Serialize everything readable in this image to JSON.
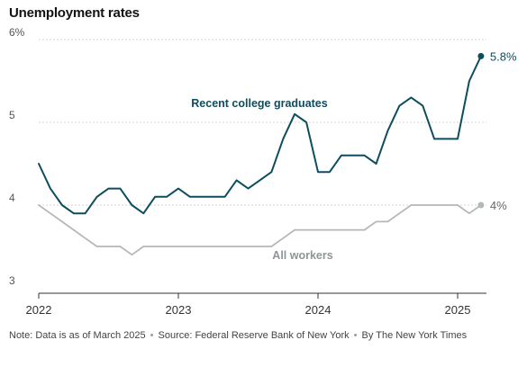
{
  "chart_data": {
    "type": "line",
    "title": "Unemployment rates",
    "xlabel": "",
    "ylabel": "",
    "ylim": [
      3,
      6
    ],
    "yticks": [
      {
        "value": 3,
        "label": "3"
      },
      {
        "value": 4,
        "label": "4"
      },
      {
        "value": 5,
        "label": "5"
      },
      {
        "value": 6,
        "label": "6%"
      }
    ],
    "xticks": [
      {
        "value": 2022.0,
        "label": "2022"
      },
      {
        "value": 2023.0,
        "label": "2023"
      },
      {
        "value": 2024.0,
        "label": "2024"
      },
      {
        "value": 2025.0,
        "label": "2025"
      }
    ],
    "xlim": [
      2022.0,
      2025.25
    ],
    "grid": true,
    "series": [
      {
        "name": "Recent college graduates",
        "color": "#0d4d5e",
        "end_label": "5.8%",
        "x": [
          2022.0,
          2022.083,
          2022.167,
          2022.25,
          2022.333,
          2022.417,
          2022.5,
          2022.583,
          2022.667,
          2022.75,
          2022.833,
          2022.917,
          2023.0,
          2023.083,
          2023.167,
          2023.25,
          2023.333,
          2023.417,
          2023.5,
          2023.583,
          2023.667,
          2023.75,
          2023.833,
          2023.917,
          2024.0,
          2024.083,
          2024.167,
          2024.25,
          2024.333,
          2024.417,
          2024.5,
          2024.583,
          2024.667,
          2024.75,
          2024.833,
          2024.917,
          2025.0,
          2025.083,
          2025.167
        ],
        "values": [
          4.5,
          4.2,
          4.0,
          3.9,
          3.9,
          4.1,
          4.2,
          4.2,
          4.0,
          3.9,
          4.1,
          4.1,
          4.2,
          4.1,
          4.1,
          4.1,
          4.1,
          4.3,
          4.2,
          4.3,
          4.4,
          4.8,
          5.1,
          5.0,
          4.4,
          4.4,
          4.6,
          4.6,
          4.6,
          4.5,
          4.9,
          5.2,
          5.3,
          5.2,
          4.8,
          4.8,
          4.8,
          5.5,
          5.8
        ]
      },
      {
        "name": "All workers",
        "color": "#b3b8ba",
        "end_label": "4%",
        "x": [
          2022.0,
          2022.083,
          2022.167,
          2022.25,
          2022.333,
          2022.417,
          2022.5,
          2022.583,
          2022.667,
          2022.75,
          2022.833,
          2022.917,
          2023.0,
          2023.083,
          2023.167,
          2023.25,
          2023.333,
          2023.417,
          2023.5,
          2023.583,
          2023.667,
          2023.75,
          2023.833,
          2023.917,
          2024.0,
          2024.083,
          2024.167,
          2024.25,
          2024.333,
          2024.417,
          2024.5,
          2024.583,
          2024.667,
          2024.75,
          2024.833,
          2024.917,
          2025.0,
          2025.083,
          2025.167
        ],
        "values": [
          4.0,
          3.9,
          3.8,
          3.7,
          3.6,
          3.5,
          3.5,
          3.5,
          3.4,
          3.5,
          3.5,
          3.5,
          3.5,
          3.5,
          3.5,
          3.5,
          3.5,
          3.5,
          3.5,
          3.5,
          3.5,
          3.6,
          3.7,
          3.7,
          3.7,
          3.7,
          3.7,
          3.7,
          3.7,
          3.8,
          3.8,
          3.9,
          4.0,
          4.0,
          4.0,
          4.0,
          4.0,
          3.9,
          4.0
        ]
      }
    ]
  },
  "footer": {
    "note": "Note: Data is as of March 2025",
    "separator": "•",
    "source": "Source: Federal Reserve Bank of New York",
    "credit": "By The New York Times"
  }
}
